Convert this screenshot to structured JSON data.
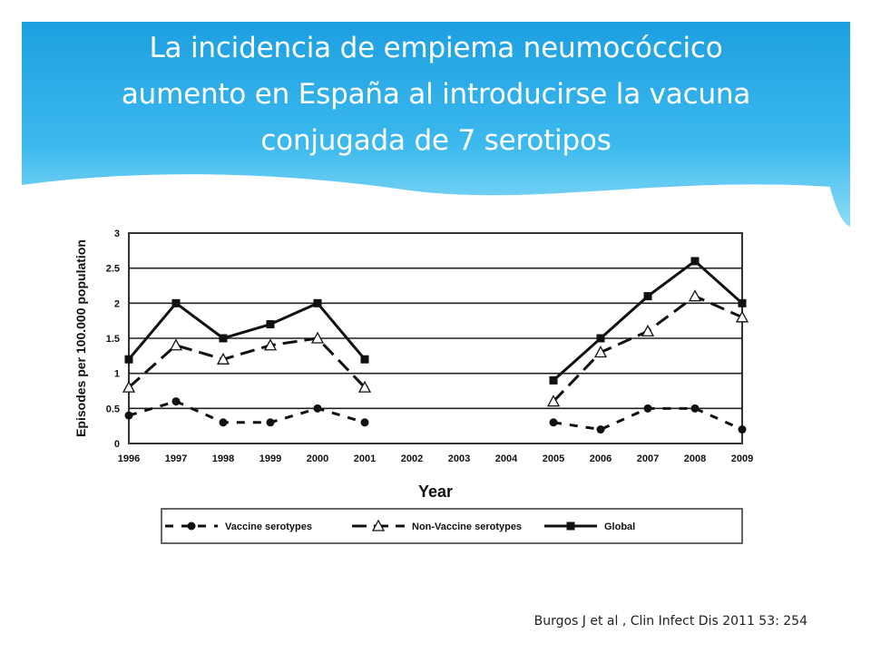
{
  "slide": {
    "title_lines": [
      "La incidencia de empiema neumocóccico",
      "aumento en España al introducirse la vacuna",
      "conjugada de 7 serotipos"
    ],
    "citation": "Burgos  J et al ,  Clin Infect Dis 2011 53: 254",
    "banner_colors": [
      "#7fd8f4",
      "#38b6e8",
      "#1d9fe0"
    ]
  },
  "chart_data": {
    "type": "line",
    "xlabel": "Year",
    "ylabel": "Episodes per 100.000 population",
    "categories": [
      "1996",
      "1997",
      "1998",
      "1999",
      "2000",
      "2001",
      "2002",
      "2003",
      "2004",
      "2005",
      "2006",
      "2007",
      "2008",
      "2009"
    ],
    "y_ticks": [
      "0",
      "0.5",
      "1",
      "1.5",
      "2",
      "2.5",
      "3"
    ],
    "ylim": [
      0,
      3
    ],
    "grid": "horizontal",
    "legend_position": "bottom",
    "series": [
      {
        "name": "Vaccine serotypes",
        "marker": "circle",
        "dash": "dashed",
        "values": [
          0.4,
          0.6,
          0.3,
          0.3,
          0.5,
          0.3,
          null,
          null,
          null,
          0.3,
          0.2,
          0.5,
          0.5,
          0.2
        ]
      },
      {
        "name": "Non-Vaccine serotypes",
        "marker": "triangle",
        "dash": "long-dash",
        "values": [
          0.8,
          1.4,
          1.2,
          1.4,
          1.5,
          0.8,
          null,
          null,
          null,
          0.6,
          1.3,
          1.6,
          2.1,
          1.8
        ]
      },
      {
        "name": "Global",
        "marker": "square",
        "dash": "solid",
        "values": [
          1.2,
          2.0,
          1.5,
          1.7,
          2.0,
          1.2,
          null,
          null,
          null,
          0.9,
          1.5,
          2.1,
          2.6,
          2.0
        ]
      }
    ]
  }
}
